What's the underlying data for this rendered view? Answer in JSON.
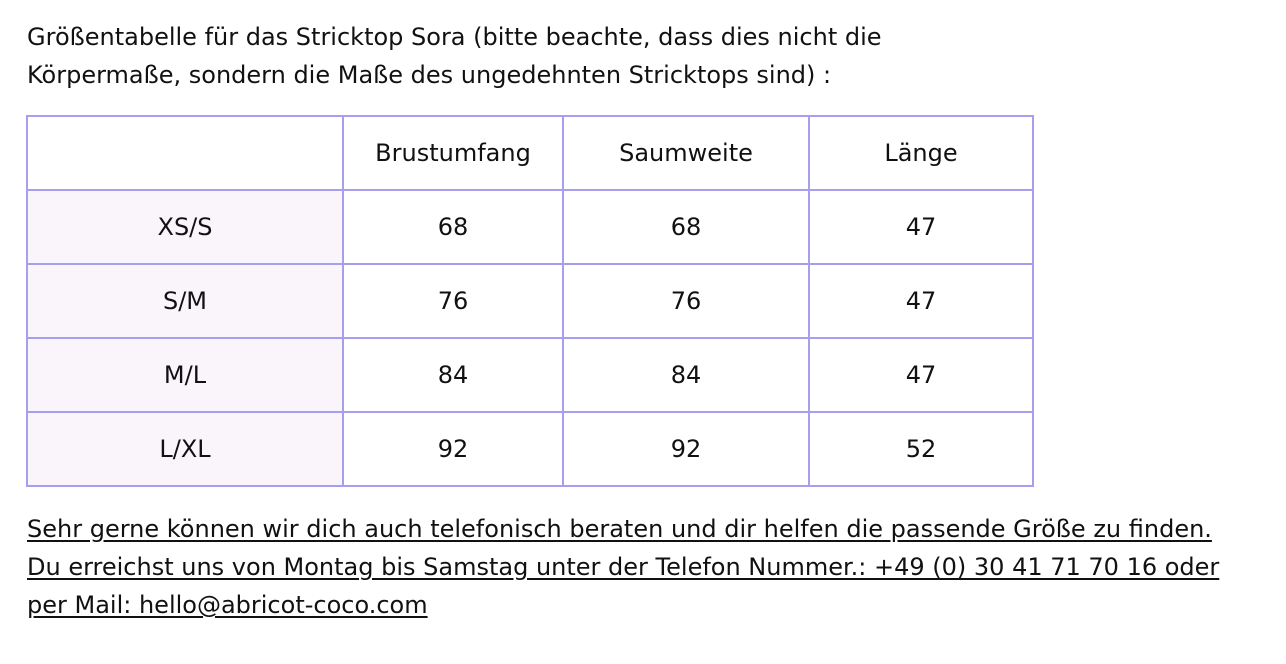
{
  "intro": {
    "line1": "Größentabelle für das Stricktop Sora  (bitte beachte, dass dies nicht die",
    "line2": "Körpermaße, sondern die Maße des ungedehnten Stricktops sind) :"
  },
  "table": {
    "headers": [
      "",
      "Brustumfang",
      "Saumweite",
      "Länge"
    ],
    "rows": [
      {
        "size": "XS/S",
        "brustumfang": "68",
        "saumweite": "68",
        "laenge": "47"
      },
      {
        "size": "S/M",
        "brustumfang": "76",
        "saumweite": "76",
        "laenge": "47"
      },
      {
        "size": "M/L",
        "brustumfang": "84",
        "saumweite": "84",
        "laenge": "47"
      },
      {
        "size": "L/XL",
        "brustumfang": "92",
        "saumweite": "92",
        "laenge": "52"
      }
    ]
  },
  "footer": {
    "line1": "Sehr gerne können wir dich auch telefonisch beraten und dir helfen die passende Größe zu finden.",
    "line2": "Du erreichst uns von Montag bis Samstag unter der Telefon Nummer.: +49 (0) 30 41 71 70 16 oder",
    "line3": "per Mail: hello@abricot-coco.com"
  },
  "colors": {
    "border": "#a89ef0",
    "size_cell_bg": "#faf4fb",
    "text": "#111111"
  }
}
